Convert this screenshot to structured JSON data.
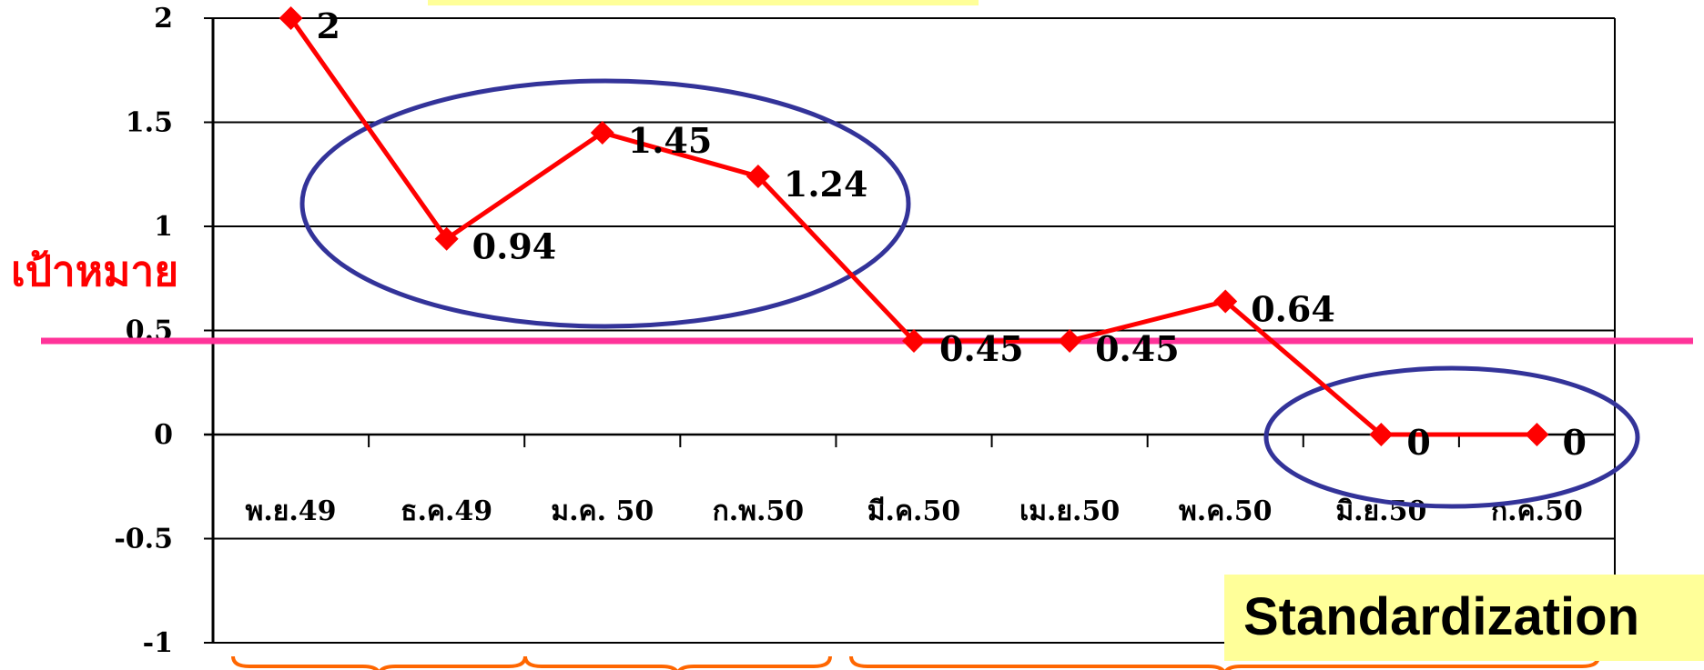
{
  "chart_data": {
    "type": "line",
    "categories": [
      "พ.ย.49",
      "ธ.ค.49",
      "ม.ค. 50",
      "ก.พ.50",
      "มี.ค.50",
      "เม.ย.50",
      "พ.ค.50",
      "มิ.ย.50",
      "ก.ค.50"
    ],
    "series": [
      {
        "values": [
          2,
          0.94,
          1.45,
          1.24,
          0.45,
          0.45,
          0.64,
          0,
          0
        ],
        "color": "#ff0000"
      }
    ],
    "data_labels": [
      "2",
      "0.94",
      "1.45",
      "1.24",
      "0.45",
      "0.45",
      "0.64",
      "0",
      "0"
    ],
    "y_ticks": [
      "2",
      "1.5",
      "1",
      "0.5",
      "0",
      "-0.5",
      "-1"
    ],
    "ylim": [
      -1,
      2
    ],
    "grid": true,
    "target": {
      "label": "เป้าหมาย",
      "value": 0.45,
      "color": "#ff3399"
    },
    "annotation": {
      "label": "Standardization",
      "background": "#ffff99"
    },
    "highlight_color": "#333399",
    "brace_color": "#ff6600"
  }
}
